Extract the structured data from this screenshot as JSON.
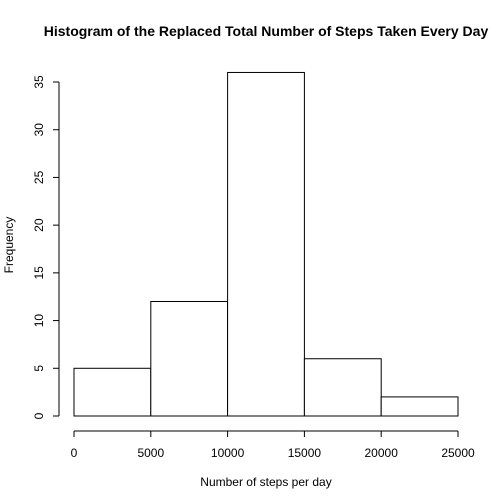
{
  "chart_data": {
    "type": "bar",
    "title": "Histogram of the Replaced Total Number of Steps Taken Every Day",
    "xlabel": "Number of steps per day",
    "ylabel": "Frequency",
    "bins": [
      {
        "from": 0,
        "to": 5000,
        "count": 5
      },
      {
        "from": 5000,
        "to": 10000,
        "count": 12
      },
      {
        "from": 10000,
        "to": 15000,
        "count": 36
      },
      {
        "from": 15000,
        "to": 20000,
        "count": 6
      },
      {
        "from": 20000,
        "to": 25000,
        "count": 2
      }
    ],
    "xlim": [
      0,
      25000
    ],
    "ylim": [
      0,
      35
    ],
    "x_ticks": [
      0,
      5000,
      10000,
      15000,
      20000,
      25000
    ],
    "y_ticks": [
      0,
      5,
      10,
      15,
      20,
      25,
      30,
      35
    ],
    "grid": false,
    "colors": {
      "bar_fill": "#ffffff",
      "bar_stroke": "#000000"
    }
  }
}
